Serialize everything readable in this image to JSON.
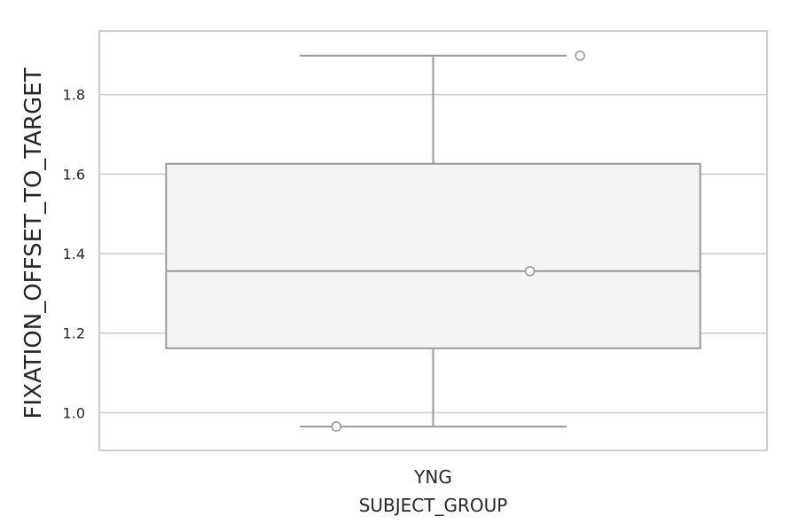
{
  "chart_data": {
    "type": "box",
    "xlabel": "SUBJECT_GROUP",
    "ylabel": "FIXATION_OFFSET_TO_TARGET",
    "categories": [
      "YNG"
    ],
    "ylim": [
      0.905,
      1.96
    ],
    "yticks": [
      1.0,
      1.2,
      1.4,
      1.6,
      1.8
    ],
    "ytick_labels": [
      "1.0",
      "1.2",
      "1.4",
      "1.6",
      "1.8"
    ],
    "grid": true,
    "boxes": [
      {
        "category": "YNG",
        "whisker_low": 0.965,
        "q1": 1.162,
        "median": 1.356,
        "q3": 1.626,
        "whisker_high": 1.898
      }
    ],
    "points": [
      {
        "category": "YNG",
        "offset": 0.22,
        "y": 1.898
      },
      {
        "category": "YNG",
        "offset": 0.145,
        "y": 1.356
      },
      {
        "category": "YNG",
        "offset": -0.145,
        "y": 0.965
      }
    ],
    "colors": {
      "box_fill": "#f4f4f4",
      "box_edge": "#999999",
      "grid": "#cccccc",
      "frame": "#cccccc",
      "point_edge": "#999999",
      "point_fill": "#ffffff"
    }
  }
}
